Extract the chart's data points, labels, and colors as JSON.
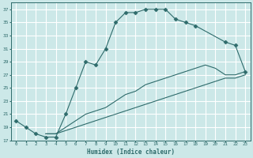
{
  "xlabel": "Humidex (Indice chaleur)",
  "bg_color": "#cce8e8",
  "grid_color": "#ffffff",
  "line_color": "#2e6b6b",
  "xlim": [
    -0.5,
    23.5
  ],
  "ylim": [
    17,
    38
  ],
  "xticks": [
    0,
    1,
    2,
    3,
    4,
    5,
    6,
    7,
    8,
    9,
    10,
    11,
    12,
    13,
    14,
    15,
    16,
    17,
    18,
    19,
    20,
    21,
    22,
    23
  ],
  "yticks": [
    17,
    19,
    21,
    23,
    25,
    27,
    29,
    31,
    33,
    35,
    37
  ],
  "series": [
    {
      "x": [
        0,
        1,
        2,
        3,
        4,
        5,
        6,
        7,
        8,
        9,
        10,
        11,
        12,
        13,
        14,
        15,
        16,
        17,
        18,
        21,
        22,
        23
      ],
      "y": [
        20,
        19,
        18,
        17.5,
        17.5,
        21,
        25,
        29,
        28.5,
        31,
        35,
        36.5,
        36.5,
        37,
        37,
        37,
        35.5,
        35,
        34.5,
        32,
        31.5,
        27.5
      ],
      "marker": "D",
      "markersize": 2.5
    },
    {
      "x": [
        3,
        4,
        5,
        6,
        7,
        8,
        9,
        10,
        11,
        12,
        13,
        14,
        15,
        16,
        17,
        18,
        19,
        20,
        21,
        22,
        23
      ],
      "y": [
        18,
        18,
        19,
        20,
        21,
        21.5,
        22,
        23,
        24,
        24.5,
        25.5,
        26,
        26.5,
        27,
        27.5,
        28,
        28.5,
        28,
        27,
        27,
        27.5
      ],
      "marker": null,
      "markersize": 0
    },
    {
      "x": [
        3,
        4,
        5,
        6,
        7,
        8,
        9,
        10,
        11,
        12,
        13,
        14,
        15,
        16,
        17,
        18,
        19,
        20,
        21,
        22,
        23
      ],
      "y": [
        18,
        18,
        18.5,
        19,
        19.5,
        20,
        20.5,
        21,
        21.5,
        22,
        22.5,
        23,
        23.5,
        24,
        24.5,
        25,
        25.5,
        26,
        26.5,
        26.5,
        27
      ],
      "marker": null,
      "markersize": 0
    }
  ]
}
